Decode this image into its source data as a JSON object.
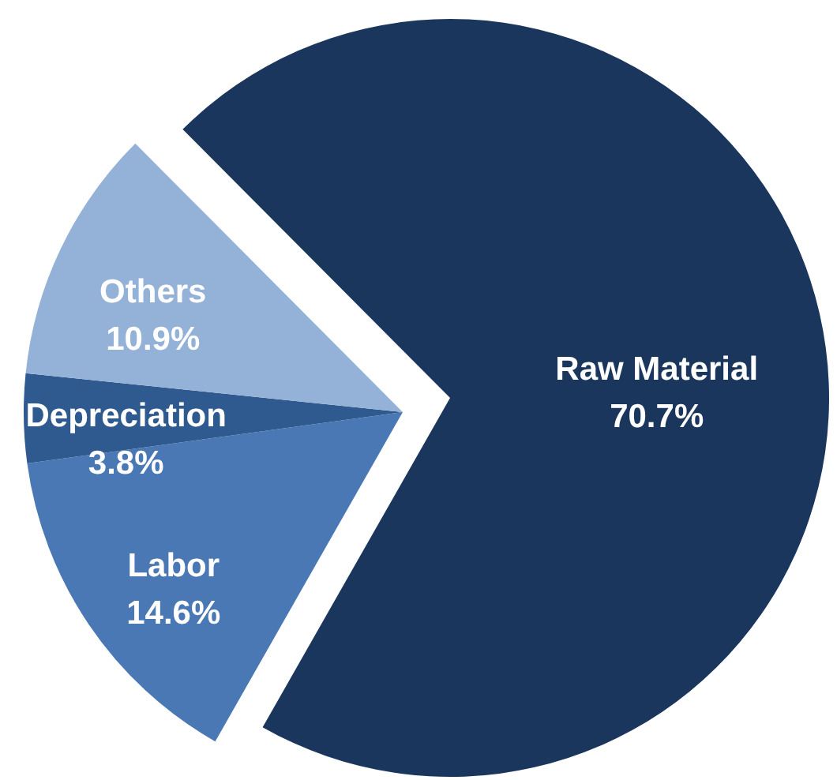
{
  "chart_data": {
    "type": "pie",
    "categories": [
      "Raw Material",
      "Labor",
      "Depreciation",
      "Others"
    ],
    "values": [
      70.7,
      14.6,
      3.8,
      10.9
    ],
    "colors": [
      "#1b365d",
      "#4a78b5",
      "#2e5a8f",
      "#94b2d8"
    ],
    "value_labels": [
      "70.7%",
      "14.6%",
      "3.8%",
      "10.9%"
    ]
  }
}
